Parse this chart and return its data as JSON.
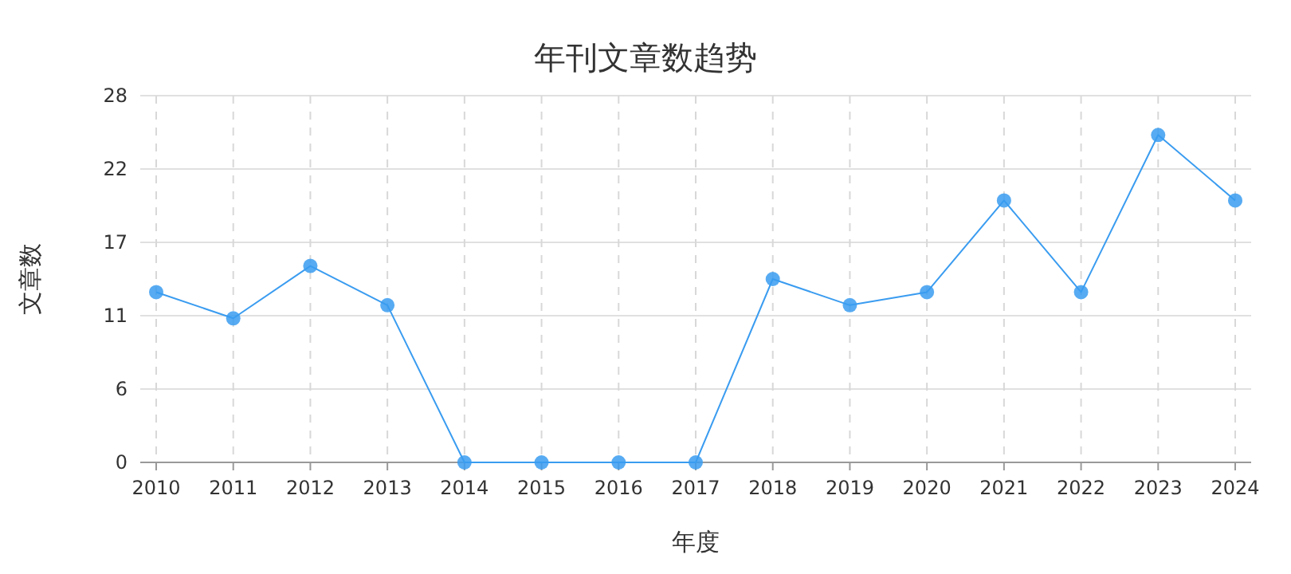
{
  "chart_data": {
    "type": "line",
    "title": "年刊文章数趋势",
    "xlabel": "年度",
    "ylabel": "文章数",
    "categories": [
      "2010",
      "2011",
      "2012",
      "2013",
      "2014",
      "2015",
      "2016",
      "2017",
      "2018",
      "2019",
      "2020",
      "2021",
      "2022",
      "2023",
      "2024"
    ],
    "series": [
      {
        "color": "#3a9cf0",
        "values": [
          13,
          11,
          15,
          12,
          0,
          0,
          0,
          0,
          14,
          12,
          13,
          20,
          13,
          25,
          20
        ]
      }
    ],
    "ylim": [
      0,
      28
    ],
    "yticks": [
      0,
      {
        "value": 5.6,
        "label": "6"
      },
      {
        "value": 11.2,
        "label": "11"
      },
      {
        "value": 16.8,
        "label": "17"
      },
      {
        "value": 22.4,
        "label": "22"
      },
      28
    ],
    "grid": true,
    "marker": "circle",
    "line_style": "solid"
  }
}
